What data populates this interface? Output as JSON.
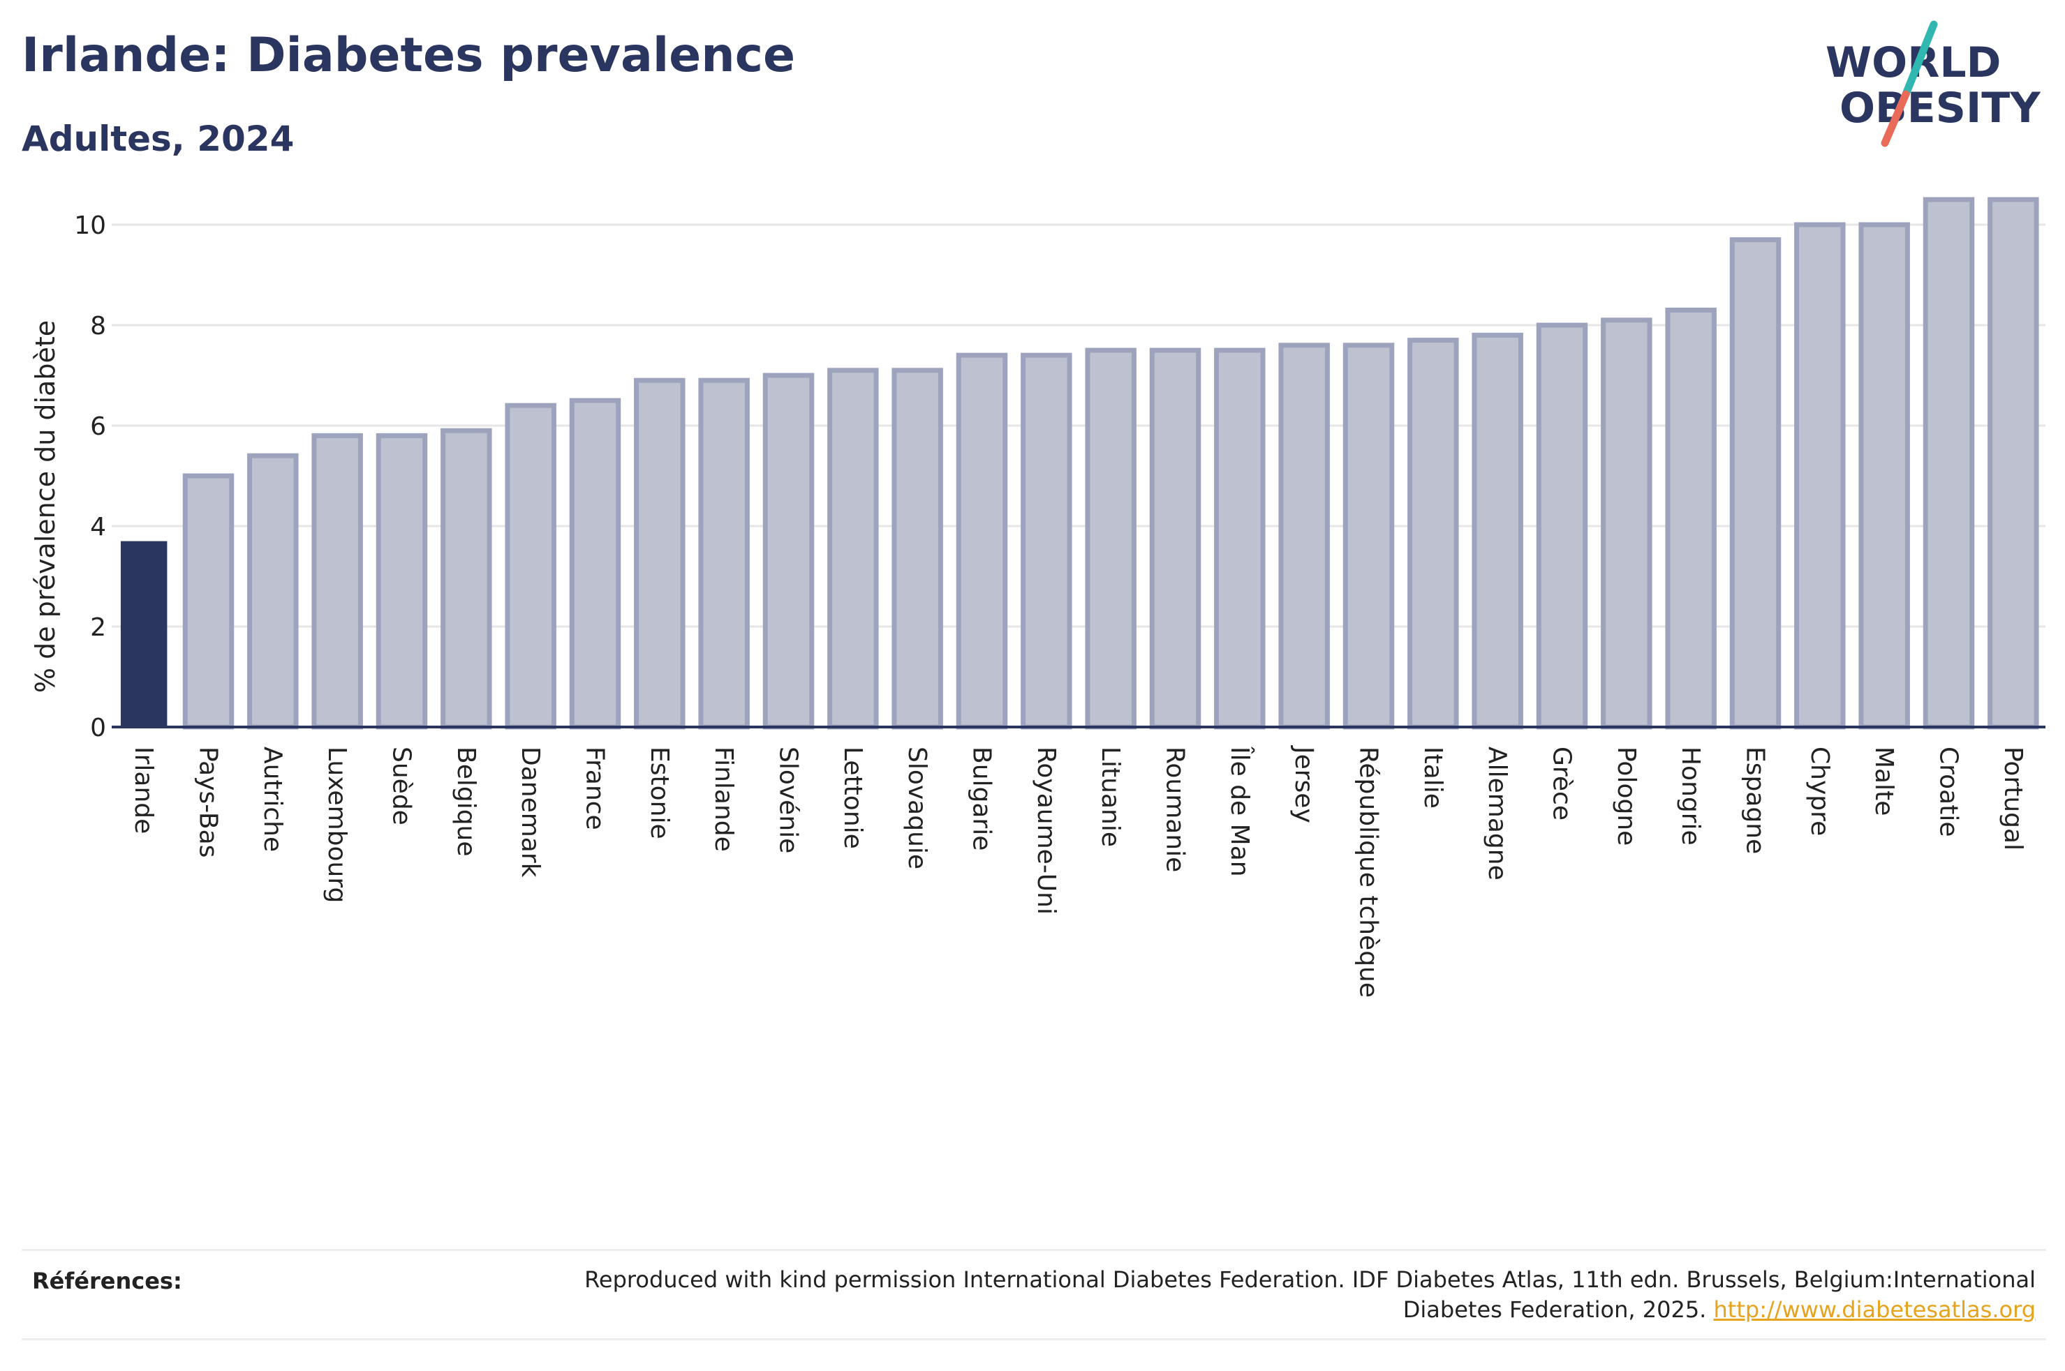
{
  "header": {
    "title": "Irlande: Diabetes prevalence",
    "subtitle": "Adultes, 2024"
  },
  "logo": {
    "line1": "WORLD",
    "line2": "OBESITY"
  },
  "colors": {
    "highlight": "#2a3560",
    "bar": "#bec2d0",
    "bar_edge": "#9da3bc",
    "text": "#2a3560",
    "link": "#e5a31e"
  },
  "chart_data": {
    "type": "bar",
    "categories": [
      "Irlande",
      "Pays-Bas",
      "Autriche",
      "Luxembourg",
      "Suède",
      "Belgique",
      "Danemark",
      "France",
      "Estonie",
      "Finlande",
      "Slovénie",
      "Lettonie",
      "Slovaquie",
      "Bulgarie",
      "Royaume-Uni",
      "Lituanie",
      "Roumanie",
      "Île de Man",
      "Jersey",
      "République tchèque",
      "Italie",
      "Allemagne",
      "Grèce",
      "Pologne",
      "Hongrie",
      "Espagne",
      "Chypre",
      "Malte",
      "Croatie",
      "Portugal"
    ],
    "values": [
      3.7,
      5.0,
      5.4,
      5.8,
      5.8,
      5.9,
      6.4,
      6.5,
      6.9,
      6.9,
      7.0,
      7.1,
      7.1,
      7.4,
      7.4,
      7.5,
      7.5,
      7.5,
      7.6,
      7.6,
      7.7,
      7.8,
      8.0,
      8.1,
      8.3,
      9.7,
      10.0,
      10.0,
      10.5,
      10.5
    ],
    "highlight_index": 0,
    "ylabel": "% de prévalence du diabète",
    "xlabel": "",
    "ylim": [
      0,
      11
    ],
    "yticks": [
      0,
      2,
      4,
      6,
      8,
      10
    ],
    "grid": true
  },
  "references": {
    "label": "Références:",
    "text": "Reproduced with kind permission International Diabetes Federation. IDF Diabetes Atlas, 11th edn. Brussels, Belgium:International Diabetes Federation, 2025.",
    "link": "http://www.diabetesatlas.org"
  }
}
